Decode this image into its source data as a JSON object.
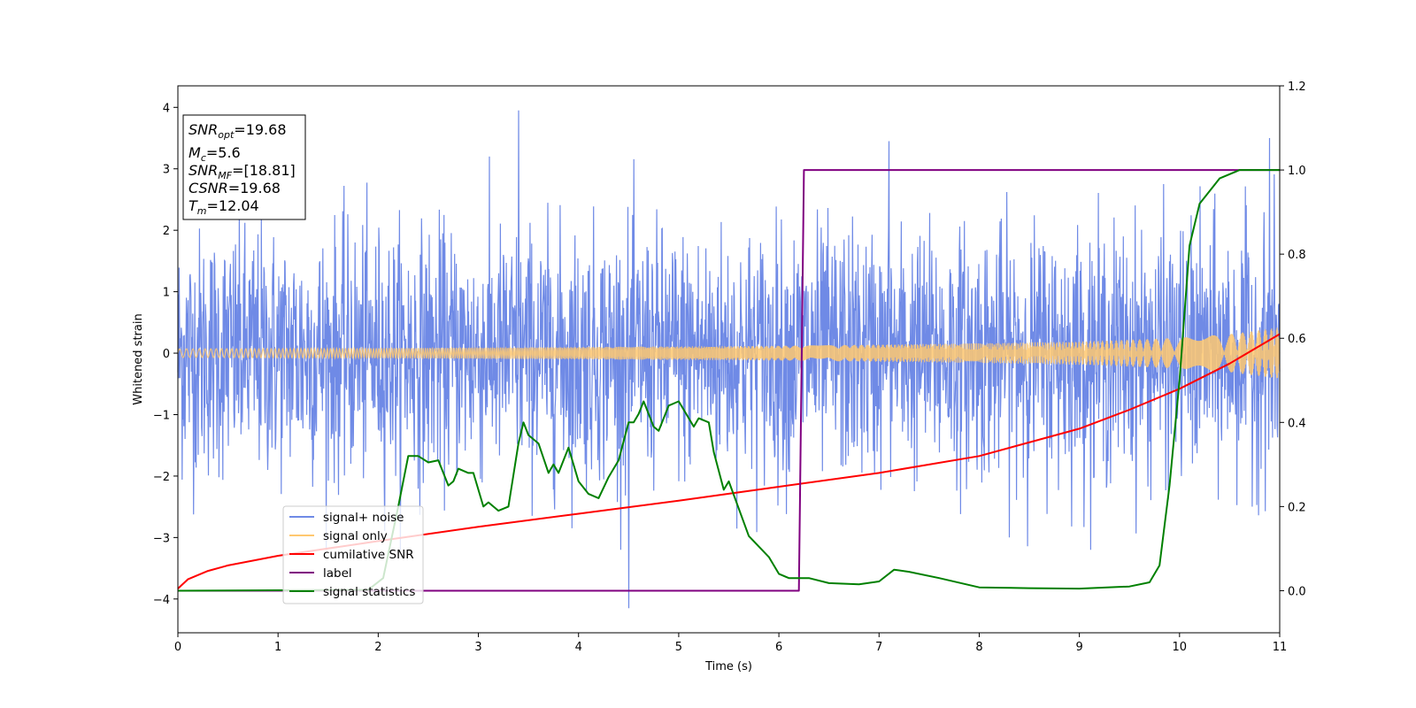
{
  "chart_data": {
    "type": "line",
    "xlabel": "Time (s)",
    "ylabel": "Whitened strain",
    "xlim": [
      0,
      11
    ],
    "ylim_left": [
      -4.55,
      4.35
    ],
    "ylim_right": [
      -0.1,
      1.2
    ],
    "xticks": [
      "0",
      "1",
      "2",
      "3",
      "4",
      "5",
      "6",
      "7",
      "8",
      "9",
      "10",
      "11"
    ],
    "yticks_left": [
      "−4",
      "−3",
      "−2",
      "−1",
      "0",
      "1",
      "2",
      "3",
      "4"
    ],
    "yticks_right": [
      "0.0",
      "0.2",
      "0.4",
      "0.6",
      "0.8",
      "1.0",
      "1.2"
    ],
    "grid": false,
    "legend_position": "lower-left",
    "legend": [
      "signal+ noise",
      "signal only",
      "cumilative SNR",
      "label",
      "signal statistics"
    ],
    "info_box": {
      "snr_opt_name": "SNR",
      "snr_opt_sub": "opt",
      "snr_opt_value": "=19.68",
      "mc_name": "M",
      "mc_sub": "c",
      "mc_value": "=5.6",
      "snr_mf_name": "SNR",
      "snr_mf_sub": "MF",
      "snr_mf_value": "=[18.81]",
      "csnr_name": "CSNR",
      "csnr_value": "=19.68",
      "tm_name": "T",
      "tm_sub": "m",
      "tm_value": "=12.04"
    },
    "series": [
      {
        "name": "signal+ noise",
        "color": "#6f8ae6",
        "axis": "left",
        "description_values": {
          "noise_sigma": 1.0,
          "peak_examples": [
            [
              3.4,
              3.95
            ],
            [
              4.5,
              -4.15
            ],
            [
              10.9,
              3.5
            ],
            [
              7.1,
              3.45
            ]
          ]
        }
      },
      {
        "name": "signal only",
        "color": "#ffc870",
        "axis": "left",
        "envelope": {
          "x": [
            0,
            2,
            4,
            6,
            8,
            9,
            10,
            10.5,
            11
          ],
          "amp": [
            0.07,
            0.08,
            0.1,
            0.12,
            0.16,
            0.19,
            0.25,
            0.31,
            0.42
          ]
        }
      },
      {
        "name": "cumilative SNR",
        "color": "#ff0000",
        "axis": "right",
        "x": [
          0,
          0.1,
          0.3,
          0.5,
          1,
          2,
          3,
          4,
          5,
          6,
          7,
          8,
          9,
          9.5,
          10,
          10.5,
          11
        ],
        "y": [
          0.005,
          0.027,
          0.047,
          0.06,
          0.083,
          0.118,
          0.152,
          0.183,
          0.214,
          0.247,
          0.28,
          0.32,
          0.385,
          0.43,
          0.48,
          0.54,
          0.61
        ]
      },
      {
        "name": "label",
        "color": "#800080",
        "axis": "right",
        "x": [
          0,
          6.2,
          6.25,
          11
        ],
        "y": [
          0,
          0,
          1,
          1
        ]
      },
      {
        "name": "signal statistics",
        "color": "#008000",
        "axis": "right",
        "x": [
          0,
          1.9,
          2.05,
          2.2,
          2.3,
          2.4,
          2.5,
          2.6,
          2.7,
          2.75,
          2.8,
          2.9,
          2.95,
          3.05,
          3.1,
          3.2,
          3.3,
          3.4,
          3.45,
          3.5,
          3.6,
          3.7,
          3.75,
          3.8,
          3.9,
          4.0,
          4.1,
          4.2,
          4.3,
          4.4,
          4.5,
          4.55,
          4.6,
          4.65,
          4.75,
          4.8,
          4.9,
          5.0,
          5.05,
          5.15,
          5.2,
          5.3,
          5.35,
          5.45,
          5.5,
          5.7,
          5.9,
          6.0,
          6.1,
          6.3,
          6.5,
          6.8,
          7.0,
          7.15,
          7.3,
          7.6,
          8.0,
          8.5,
          9.0,
          9.5,
          9.7,
          9.8,
          9.9,
          10.0,
          10.1,
          10.2,
          10.4,
          10.6,
          11.0
        ],
        "y": [
          0.0,
          0.002,
          0.03,
          0.2,
          0.32,
          0.32,
          0.305,
          0.31,
          0.25,
          0.26,
          0.29,
          0.28,
          0.28,
          0.2,
          0.21,
          0.19,
          0.2,
          0.35,
          0.4,
          0.37,
          0.35,
          0.28,
          0.3,
          0.28,
          0.34,
          0.26,
          0.23,
          0.22,
          0.27,
          0.31,
          0.4,
          0.4,
          0.42,
          0.45,
          0.39,
          0.38,
          0.44,
          0.45,
          0.43,
          0.39,
          0.41,
          0.4,
          0.33,
          0.24,
          0.26,
          0.13,
          0.08,
          0.04,
          0.03,
          0.03,
          0.018,
          0.015,
          0.022,
          0.05,
          0.045,
          0.03,
          0.008,
          0.006,
          0.005,
          0.01,
          0.02,
          0.06,
          0.25,
          0.5,
          0.82,
          0.92,
          0.98,
          1.0,
          1.0
        ]
      }
    ]
  }
}
